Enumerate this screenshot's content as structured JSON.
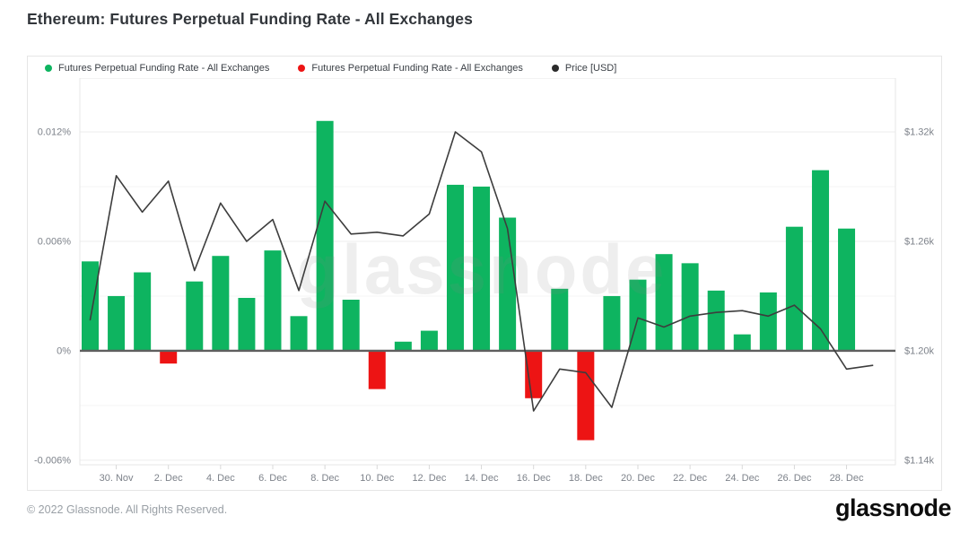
{
  "title": "Ethereum: Futures Perpetual Funding Rate - All Exchanges",
  "legend": {
    "items": [
      {
        "name": "funding-rate-positive",
        "label": "Futures Perpetual Funding Rate - All Exchanges",
        "color": "#0eb460"
      },
      {
        "name": "funding-rate-negative",
        "label": "Futures Perpetual Funding Rate - All Exchanges",
        "color": "#ed1414"
      },
      {
        "name": "price-usd",
        "label": "Price [USD]",
        "color": "#2b2b2b"
      }
    ]
  },
  "watermark": "glassnode",
  "footer": {
    "copyright": "© 2022 Glassnode. All Rights Reserved.",
    "logo": "glassnode"
  },
  "chart_data": {
    "type": "bar+line",
    "title": "Ethereum: Futures Perpetual Funding Rate - All Exchanges",
    "x": [
      "29. Nov",
      "30. Nov",
      "1. Dec",
      "2. Dec",
      "3. Dec",
      "4. Dec",
      "5. Dec",
      "6. Dec",
      "7. Dec",
      "8. Dec",
      "9. Dec",
      "10. Dec",
      "11. Dec",
      "12. Dec",
      "13. Dec",
      "14. Dec",
      "15. Dec",
      "16. Dec",
      "17. Dec",
      "18. Dec",
      "19. Dec",
      "20. Dec",
      "21. Dec",
      "22. Dec",
      "23. Dec",
      "24. Dec",
      "25. Dec",
      "26. Dec",
      "27. Dec",
      "28. Dec",
      "29. Dec"
    ],
    "series": [
      {
        "name": "Futures Perpetual Funding Rate - All Exchanges",
        "type": "bar",
        "unit": "%",
        "color_positive": "#0eb460",
        "color_negative": "#ed1414",
        "values": [
          0.0049,
          0.003,
          0.0043,
          -0.0007,
          0.0038,
          0.0052,
          0.0029,
          0.0055,
          0.0019,
          0.0126,
          0.0028,
          -0.0021,
          0.0005,
          0.0011,
          0.0091,
          0.009,
          0.0073,
          -0.0026,
          0.0034,
          -0.0049,
          0.003,
          0.0039,
          0.0053,
          0.0048,
          0.0033,
          0.0009,
          0.0032,
          0.0068,
          0.0099,
          0.0067,
          null
        ]
      },
      {
        "name": "Price [USD]",
        "type": "line",
        "unit": "USD",
        "color": "#3d3d3d",
        "values": [
          1217,
          1296,
          1276,
          1293,
          1244,
          1281,
          1260,
          1272,
          1233,
          1282,
          1264,
          1265,
          1263,
          1275,
          1320,
          1309,
          1267,
          1167,
          1190,
          1188,
          1169,
          1218,
          1213,
          1219,
          1221,
          1222,
          1219,
          1225,
          1212,
          1190,
          1192
        ]
      }
    ],
    "x_tick_labels": [
      "30. Nov",
      "2. Dec",
      "4. Dec",
      "6. Dec",
      "8. Dec",
      "10. Dec",
      "12. Dec",
      "14. Dec",
      "16. Dec",
      "18. Dec",
      "20. Dec",
      "22. Dec",
      "24. Dec",
      "26. Dec",
      "28. Dec"
    ],
    "y_left": {
      "tick_labels": [
        "0.012%",
        "0.006%",
        "0%",
        "-0.006%"
      ],
      "tick_values": [
        0.012,
        0.006,
        0,
        -0.006
      ],
      "minor_grid_values": [
        0.009,
        0.003,
        -0.003
      ],
      "range": [
        -0.00625,
        0.01495
      ]
    },
    "y_right": {
      "tick_labels": [
        "$1.32k",
        "$1.26k",
        "$1.20k",
        "$1.14k"
      ],
      "tick_values": [
        1320,
        1260,
        1200,
        1140
      ],
      "range": [
        1137.5,
        1349.5
      ]
    },
    "grid": true,
    "legend_position": "top"
  }
}
